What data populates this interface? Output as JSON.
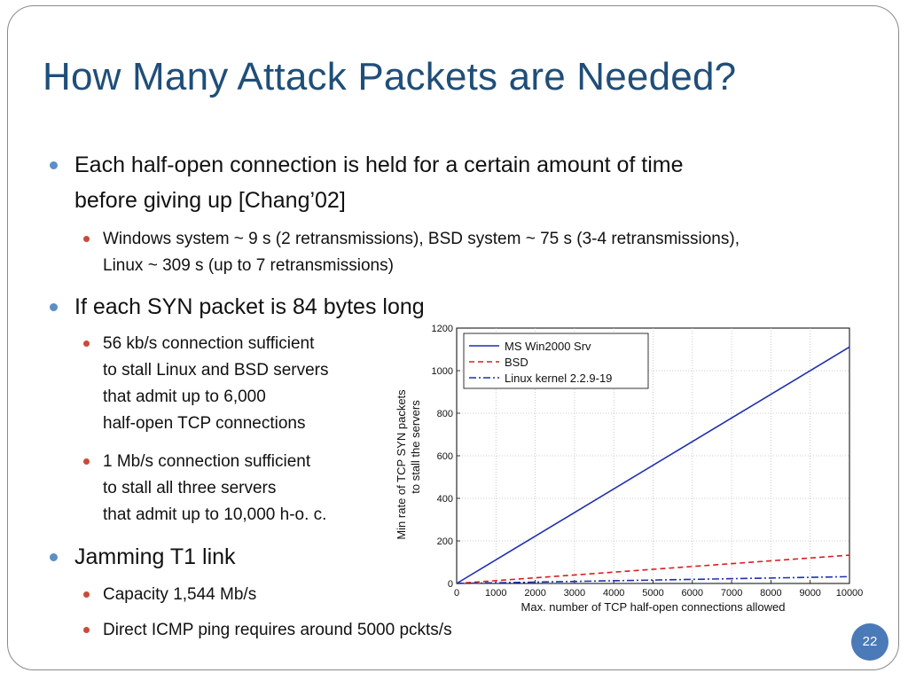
{
  "title": "How Many Attack Packets are Needed?",
  "bullets": {
    "b1_line1": "Each half-open connection is held for a certain amount of time",
    "b1_line2": "before giving up [Chang’02]",
    "b1_sub1_line1": "Windows system ~ 9 s (2 retransmissions), BSD system ~ 75 s (3-4 retransmissions),",
    "b1_sub1_line2": "Linux ~ 309 s (up to 7 retransmissions)",
    "b2": "If each SYN packet is 84 bytes long",
    "b2_sub1": [
      "56 kb/s connection sufficient",
      "to stall Linux and BSD servers",
      "that admit up to 6,000",
      "half-open TCP connections"
    ],
    "b2_sub2": [
      "1 Mb/s connection sufficient",
      "to stall all three servers",
      "that admit up to 10,000 h-o. c."
    ],
    "b3": "Jamming T1 link",
    "b3_sub1": "Capacity 1,544 Mb/s",
    "b3_sub2": "Direct ICMP ping requires around 5000 pckts/s"
  },
  "slide_number": "22",
  "colors": {
    "title": "#1f4e79",
    "accent_dot_l1": "#5b8fc7",
    "accent_dot_l2": "#c94a3a"
  },
  "chart_data": {
    "type": "line",
    "xlabel": "Max. number of TCP half-open connections allowed",
    "ylabel_line1": "Min rate of TCP SYN packets",
    "ylabel_line2": "to stall the servers",
    "xlim": [
      0,
      10000
    ],
    "ylim": [
      0,
      1200
    ],
    "x_ticks": [
      0,
      1000,
      2000,
      3000,
      4000,
      5000,
      6000,
      7000,
      8000,
      9000,
      10000
    ],
    "y_ticks": [
      0,
      200,
      400,
      600,
      800,
      1000,
      1200
    ],
    "grid": true,
    "legend_position": "top-left",
    "series": [
      {
        "name": "MS Win2000 Srv",
        "color": "#1f2fb0",
        "dash": "solid",
        "x": [
          0,
          10000
        ],
        "y": [
          0,
          1111
        ]
      },
      {
        "name": "BSD",
        "color": "#d42020",
        "dash": "dashed",
        "x": [
          0,
          10000
        ],
        "y": [
          0,
          133
        ]
      },
      {
        "name": "Linux kernel 2.2.9-19",
        "color": "#1f2fb0",
        "dash": "dashdot",
        "x": [
          0,
          10000
        ],
        "y": [
          0,
          32
        ]
      }
    ]
  }
}
